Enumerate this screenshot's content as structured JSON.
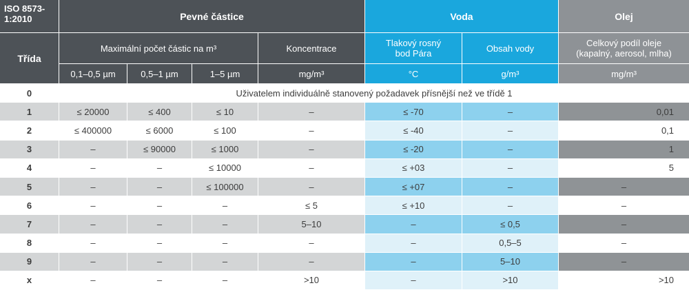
{
  "header": {
    "iso_title": "ISO 8573-1:2010",
    "iso_line1": "ISO 8573-",
    "iso_line2": "1:2010",
    "class_label": "Třída",
    "solid_particles": "Pevné částice",
    "water": "Voda",
    "oil": "Olej",
    "max_particles": "Maximální počet částic na m³",
    "concentration": "Koncentrace",
    "dew_point_line1": "Tlakový rosný",
    "dew_point_line2": "bod Pára",
    "water_content": "Obsah vody",
    "oil_total_line1": "Celkový podíl oleje",
    "oil_total_line2": "(kapalný, aerosol, mlha)",
    "size_1": "0,1–0,5 µm",
    "size_2": "0,5–1 µm",
    "size_3": "1–5 µm",
    "unit_conc": "mg/m³",
    "unit_temp": "°C",
    "unit_water": "g/m³",
    "unit_oil": "mg/m³"
  },
  "class0": {
    "cls": "0",
    "text": "Uživatelem individuálně stanovený požadavek přísnější než ve třídě 1"
  },
  "rows": [
    {
      "cls": "1",
      "p1": "≤ 20000",
      "p2": "≤ 400",
      "p3": "≤ 10",
      "conc": "–",
      "dew": "≤ -70",
      "water": "–",
      "oil": "0,01"
    },
    {
      "cls": "2",
      "p1": "≤ 400000",
      "p2": "≤ 6000",
      "p3": "≤ 100",
      "conc": "–",
      "dew": "≤ -40",
      "water": "–",
      "oil": "0,1"
    },
    {
      "cls": "3",
      "p1": "–",
      "p2": "≤ 90000",
      "p3": "≤ 1000",
      "conc": "–",
      "dew": "≤ -20",
      "water": "–",
      "oil": "1"
    },
    {
      "cls": "4",
      "p1": "–",
      "p2": "–",
      "p3": "≤ 10000",
      "conc": "–",
      "dew": "≤ +03",
      "water": "–",
      "oil": "5"
    },
    {
      "cls": "5",
      "p1": "–",
      "p2": "–",
      "p3": "≤ 100000",
      "conc": "–",
      "dew": "≤ +07",
      "water": "–",
      "oil": "–"
    },
    {
      "cls": "6",
      "p1": "–",
      "p2": "–",
      "p3": "–",
      "conc": "≤ 5",
      "dew": "≤ +10",
      "water": "–",
      "oil": "–"
    },
    {
      "cls": "7",
      "p1": "–",
      "p2": "–",
      "p3": "–",
      "conc": "5–10",
      "dew": "–",
      "water": "≤ 0,5",
      "oil": "–"
    },
    {
      "cls": "8",
      "p1": "–",
      "p2": "–",
      "p3": "–",
      "conc": "–",
      "dew": "–",
      "water": "0,5–5",
      "oil": "–"
    },
    {
      "cls": "9",
      "p1": "–",
      "p2": "–",
      "p3": "–",
      "conc": "–",
      "dew": "–",
      "water": "5–10",
      "oil": "–"
    },
    {
      "cls": "x",
      "p1": "–",
      "p2": "–",
      "p3": "–",
      "conc": ">10",
      "dew": "–",
      "water": ">10",
      "oil": ">10"
    }
  ],
  "colors": {
    "header_dark": "#4d5257",
    "header_cyan": "#1aa7dd",
    "header_gray": "#8e9296",
    "row_light_gray": "#d3d5d6",
    "water_light": "#dff1f9",
    "water_mid": "#8dd1ee",
    "oil_gray": "#8f9396"
  }
}
